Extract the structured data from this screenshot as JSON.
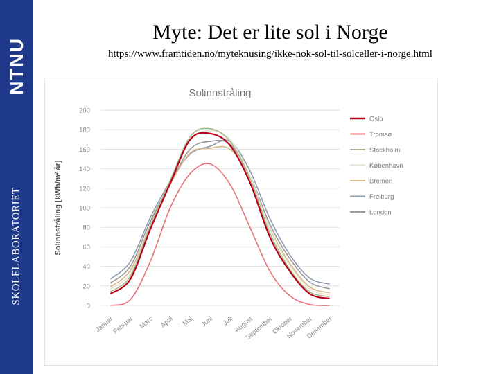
{
  "sidebar": {
    "brand": "NTNU",
    "lab": "SKOLELABORATORIET"
  },
  "slide": {
    "title": "Myte: Det er lite sol i Norge",
    "url": "https://www.framtiden.no/myteknusing/ikke-nok-sol-til-solceller-i-norge.html"
  },
  "chart_data": {
    "type": "line",
    "title": "Solinnstråling",
    "ylabel": "Solinnstråling [kWh/m² år]",
    "xlabel": "",
    "ylim": [
      0,
      200
    ],
    "yticks": [
      0,
      20,
      40,
      60,
      80,
      100,
      120,
      140,
      160,
      180,
      200
    ],
    "categories": [
      "Januar",
      "Februar",
      "Mars",
      "April",
      "Mai",
      "Juni",
      "Juli",
      "August",
      "September",
      "Oktober",
      "November",
      "Desember"
    ],
    "series": [
      {
        "name": "Oslo",
        "color": "#b3001b",
        "values": [
          12,
          27,
          78,
          125,
          170,
          176,
          164,
          126,
          70,
          35,
          12,
          7
        ]
      },
      {
        "name": "Tromsø",
        "color": "#e8707a",
        "values": [
          0,
          6,
          45,
          100,
          135,
          145,
          124,
          80,
          35,
          10,
          1,
          0
        ]
      },
      {
        "name": "Stockholm",
        "color": "#a9b88a",
        "values": [
          14,
          30,
          82,
          128,
          173,
          181,
          168,
          130,
          74,
          37,
          14,
          9
        ]
      },
      {
        "name": "København",
        "color": "#e6e6d0",
        "values": [
          17,
          33,
          82,
          127,
          169,
          179,
          170,
          133,
          78,
          41,
          17,
          11
        ]
      },
      {
        "name": "Bremen",
        "color": "#d8b888",
        "values": [
          19,
          36,
          82,
          124,
          156,
          161,
          160,
          131,
          79,
          43,
          19,
          13
        ]
      },
      {
        "name": "Freiburg",
        "color": "#8f9bb0",
        "values": [
          27,
          45,
          90,
          127,
          155,
          163,
          168,
          138,
          89,
          52,
          28,
          22
        ]
      },
      {
        "name": "London",
        "color": "#9a9a9a",
        "values": [
          23,
          40,
          86,
          125,
          160,
          168,
          165,
          133,
          83,
          48,
          24,
          17
        ]
      }
    ]
  }
}
